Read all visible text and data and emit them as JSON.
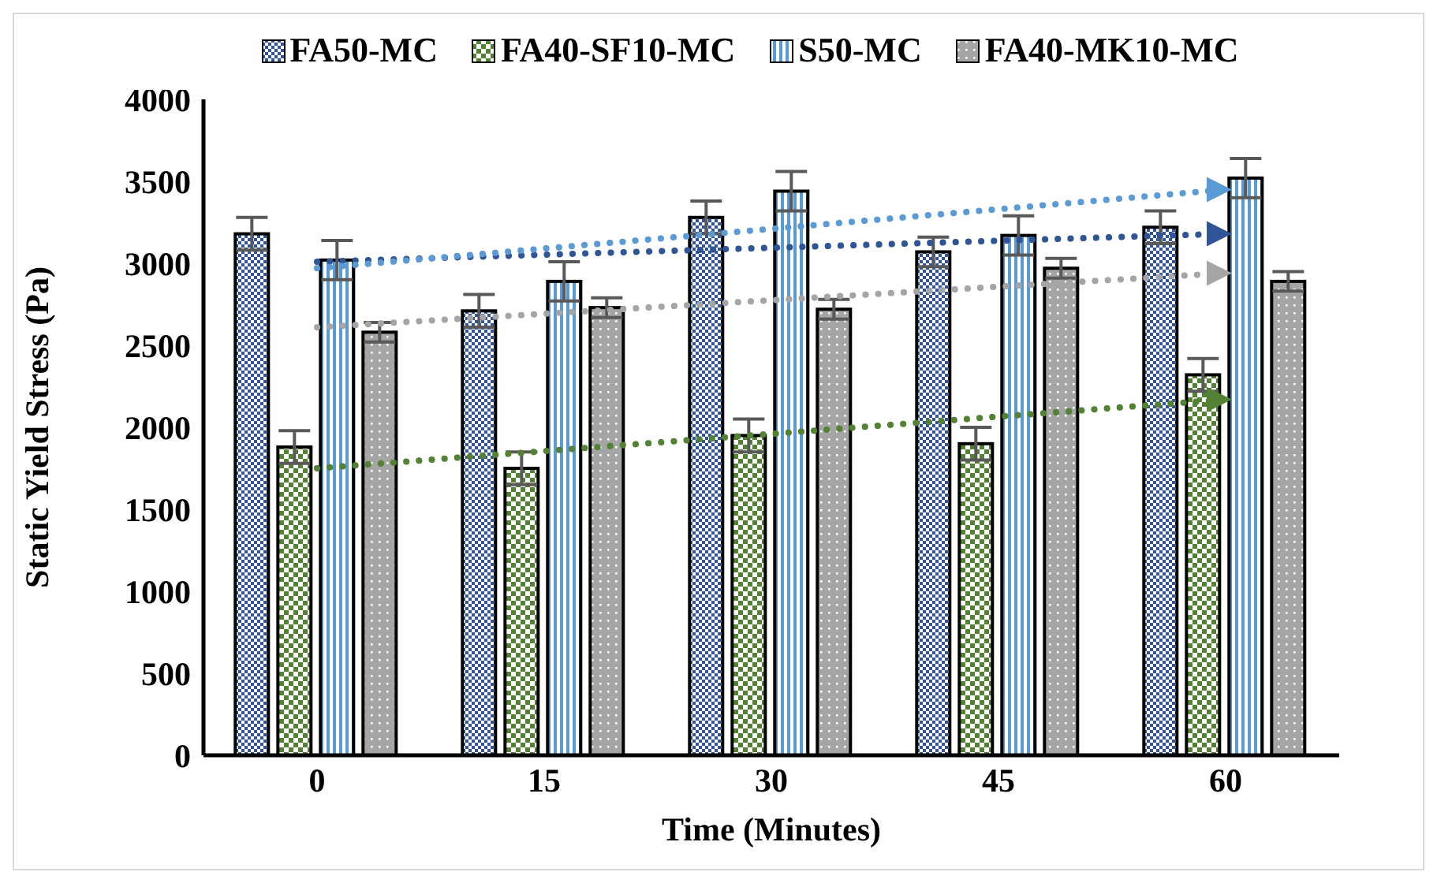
{
  "chart_data": {
    "type": "bar",
    "xlabel": "Time (Minutes)",
    "ylabel": "Static Yield Stress (Pa)",
    "categories": [
      "0",
      "15",
      "30",
      "45",
      "60"
    ],
    "ylim": [
      0,
      4000
    ],
    "yticks": [
      0,
      500,
      1000,
      1500,
      2000,
      2500,
      3000,
      3500,
      4000
    ],
    "grid": false,
    "legend": "top",
    "series": [
      {
        "name": "FA50-MC",
        "color": "#2f5597",
        "values": [
          3180,
          2710,
          3280,
          3070,
          3220
        ],
        "errors": [
          100,
          100,
          100,
          90,
          100
        ]
      },
      {
        "name": "FA40-SF10-MC",
        "color": "#548235",
        "values": [
          1880,
          1750,
          1950,
          1900,
          2320
        ],
        "errors": [
          100,
          100,
          100,
          100,
          100
        ]
      },
      {
        "name": "S50-MC",
        "color": "#5b9bd5",
        "values": [
          3020,
          2890,
          3440,
          3170,
          3520
        ],
        "errors": [
          120,
          120,
          120,
          120,
          120
        ]
      },
      {
        "name": "FA40-MK10-MC",
        "color": "#a5a5a5",
        "values": [
          2580,
          2730,
          2720,
          2970,
          2890
        ],
        "errors": [
          60,
          60,
          60,
          60,
          60
        ]
      },
      {
        "type": "line",
        "color": "#2f5597",
        "x": [
          "0",
          "60"
        ],
        "values": [
          3010,
          3180
        ],
        "line_style": "dotted"
      },
      {
        "type": "line",
        "color": "#548235",
        "x": [
          "0",
          "60"
        ],
        "values": [
          1750,
          2170
        ],
        "line_style": "dotted"
      },
      {
        "type": "line",
        "color": "#5b9bd5",
        "x": [
          "0",
          "60"
        ],
        "values": [
          2970,
          3450
        ],
        "line_style": "dotted"
      },
      {
        "type": "line",
        "color": "#a5a5a5",
        "x": [
          "0",
          "60"
        ],
        "values": [
          2610,
          2940
        ],
        "line_style": "dotted"
      }
    ]
  }
}
